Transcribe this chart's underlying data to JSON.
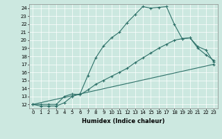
{
  "xlabel": "Humidex (Indice chaleur)",
  "bg_color": "#cce8e0",
  "line_color": "#2d7068",
  "xlim": [
    -0.5,
    23.5
  ],
  "ylim": [
    11.5,
    24.5
  ],
  "xticks": [
    0,
    1,
    2,
    3,
    4,
    5,
    6,
    7,
    8,
    9,
    10,
    11,
    12,
    13,
    14,
    15,
    16,
    17,
    18,
    19,
    20,
    21,
    22,
    23
  ],
  "yticks": [
    12,
    13,
    14,
    15,
    16,
    17,
    18,
    19,
    20,
    21,
    22,
    23,
    24
  ],
  "line1_x": [
    0,
    1,
    2,
    3,
    4,
    5,
    6,
    7,
    8,
    9,
    10,
    11,
    12,
    13,
    14,
    15,
    16,
    17,
    18,
    19,
    20,
    21,
    22,
    23
  ],
  "line1_y": [
    12,
    11.8,
    11.8,
    11.8,
    12.2,
    13.0,
    13.3,
    15.6,
    17.8,
    19.3,
    20.3,
    21.0,
    22.2,
    23.2,
    24.2,
    24.0,
    24.1,
    24.2,
    22.0,
    20.2,
    20.3,
    19.0,
    18.2,
    17.5
  ],
  "line2_x": [
    0,
    1,
    2,
    3,
    4,
    5,
    6,
    7,
    8,
    9,
    10,
    11,
    12,
    13,
    14,
    15,
    16,
    17,
    18,
    19,
    20,
    21,
    22,
    23
  ],
  "line2_y": [
    12,
    12.0,
    12.0,
    12.0,
    13.0,
    13.3,
    13.2,
    13.8,
    14.5,
    15.0,
    15.5,
    16.0,
    16.5,
    17.2,
    17.8,
    18.4,
    19.0,
    19.5,
    20.0,
    20.2,
    20.3,
    19.2,
    18.8,
    17.3
  ],
  "line3_x": [
    0,
    23
  ],
  "line3_y": [
    12,
    17.0
  ],
  "xlabel_fontsize": 6,
  "tick_fontsize": 5
}
